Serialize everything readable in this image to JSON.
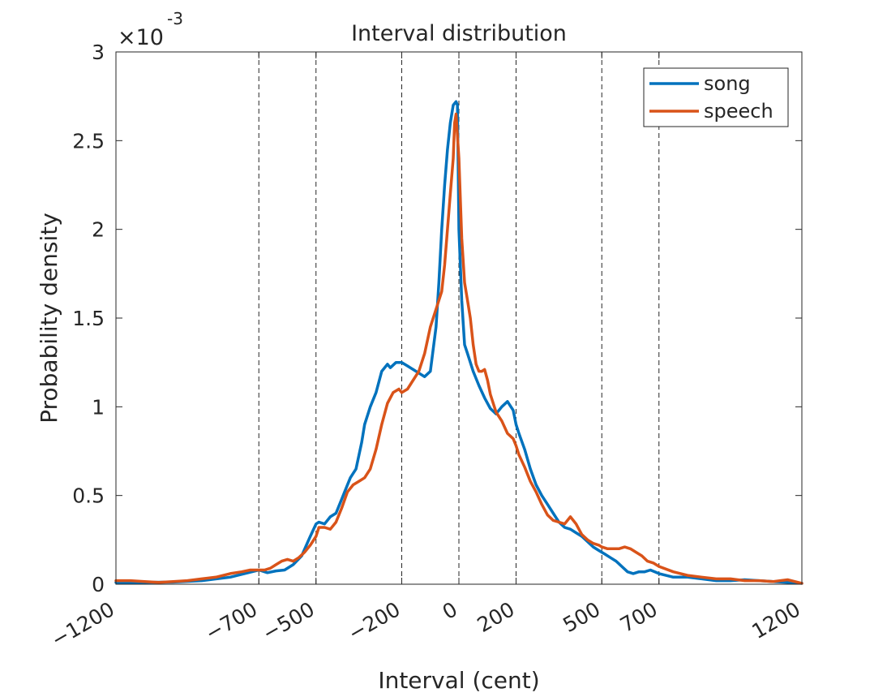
{
  "chart_data": {
    "type": "line",
    "title": "Interval distribution",
    "xlabel": "Interval (cent)",
    "ylabel": "Probability density",
    "xlim": [
      -1200,
      1200
    ],
    "ylim": [
      0,
      3
    ],
    "y_exponent_label": "×10",
    "y_exponent_power": "-3",
    "xticks": [
      -1200,
      -700,
      -500,
      -200,
      0,
      200,
      500,
      700,
      1200
    ],
    "xtick_labels": [
      "−1200",
      "−700",
      "−500",
      "−200",
      "0",
      "200",
      "500",
      "700",
      "1200"
    ],
    "yticks": [
      0,
      0.5,
      1,
      1.5,
      2,
      2.5,
      3
    ],
    "ytick_labels": [
      "0",
      "0.5",
      "1",
      "1.5",
      "2",
      "2.5",
      "3"
    ],
    "vlines": [
      -700,
      -500,
      -200,
      0,
      200,
      500,
      700
    ],
    "grid": false,
    "legend_position": "top-right",
    "series": [
      {
        "name": "song",
        "color": "#0072BD",
        "x": [
          -1200,
          -1100,
          -1000,
          -900,
          -800,
          -750,
          -700,
          -670,
          -640,
          -610,
          -580,
          -550,
          -520,
          -500,
          -490,
          -470,
          -450,
          -430,
          -410,
          -400,
          -380,
          -360,
          -340,
          -330,
          -310,
          -290,
          -270,
          -250,
          -240,
          -220,
          -200,
          -180,
          -160,
          -140,
          -120,
          -100,
          -80,
          -70,
          -60,
          -50,
          -40,
          -30,
          -20,
          -10,
          -5,
          0,
          10,
          20,
          30,
          50,
          70,
          90,
          110,
          130,
          150,
          170,
          190,
          200,
          210,
          230,
          250,
          270,
          290,
          310,
          330,
          350,
          370,
          390,
          410,
          430,
          450,
          470,
          490,
          510,
          530,
          550,
          570,
          590,
          610,
          630,
          650,
          670,
          700,
          750,
          800,
          850,
          900,
          950,
          1000,
          1050,
          1100,
          1150,
          1200
        ],
        "y": [
          0.01,
          0.01,
          0.012,
          0.02,
          0.04,
          0.06,
          0.08,
          0.065,
          0.075,
          0.08,
          0.11,
          0.16,
          0.27,
          0.34,
          0.35,
          0.34,
          0.38,
          0.4,
          0.48,
          0.52,
          0.6,
          0.65,
          0.8,
          0.9,
          1.0,
          1.08,
          1.2,
          1.24,
          1.22,
          1.25,
          1.25,
          1.23,
          1.21,
          1.19,
          1.17,
          1.2,
          1.45,
          1.7,
          2.0,
          2.25,
          2.45,
          2.6,
          2.7,
          2.72,
          2.7,
          2.0,
          1.6,
          1.35,
          1.3,
          1.2,
          1.12,
          1.05,
          0.99,
          0.96,
          1.0,
          1.03,
          0.98,
          0.9,
          0.85,
          0.76,
          0.65,
          0.56,
          0.5,
          0.45,
          0.4,
          0.35,
          0.32,
          0.31,
          0.29,
          0.27,
          0.24,
          0.21,
          0.19,
          0.17,
          0.15,
          0.13,
          0.1,
          0.07,
          0.06,
          0.07,
          0.07,
          0.08,
          0.06,
          0.04,
          0.04,
          0.03,
          0.02,
          0.02,
          0.025,
          0.02,
          0.015,
          0.01,
          0.005
        ]
      },
      {
        "name": "speech",
        "color": "#D95319",
        "x": [
          -1200,
          -1150,
          -1100,
          -1050,
          -1000,
          -950,
          -900,
          -850,
          -800,
          -760,
          -730,
          -700,
          -680,
          -660,
          -640,
          -620,
          -600,
          -580,
          -560,
          -540,
          -520,
          -500,
          -490,
          -470,
          -450,
          -430,
          -410,
          -390,
          -370,
          -350,
          -330,
          -310,
          -290,
          -270,
          -250,
          -230,
          -210,
          -200,
          -180,
          -160,
          -140,
          -120,
          -100,
          -80,
          -60,
          -50,
          -40,
          -30,
          -20,
          -15,
          -10,
          0,
          10,
          20,
          30,
          40,
          50,
          60,
          70,
          80,
          90,
          100,
          110,
          130,
          150,
          170,
          190,
          200,
          210,
          230,
          250,
          270,
          290,
          310,
          330,
          350,
          370,
          390,
          410,
          430,
          450,
          470,
          490,
          500,
          520,
          540,
          560,
          580,
          600,
          620,
          640,
          660,
          680,
          700,
          750,
          800,
          850,
          900,
          950,
          1000,
          1050,
          1100,
          1150,
          1200
        ],
        "y": [
          0.02,
          0.02,
          0.015,
          0.01,
          0.015,
          0.02,
          0.03,
          0.04,
          0.06,
          0.07,
          0.08,
          0.08,
          0.08,
          0.09,
          0.11,
          0.13,
          0.14,
          0.13,
          0.15,
          0.18,
          0.22,
          0.27,
          0.32,
          0.32,
          0.31,
          0.35,
          0.43,
          0.52,
          0.56,
          0.58,
          0.6,
          0.65,
          0.76,
          0.9,
          1.02,
          1.08,
          1.1,
          1.08,
          1.1,
          1.15,
          1.2,
          1.3,
          1.45,
          1.55,
          1.65,
          1.8,
          2.0,
          2.2,
          2.4,
          2.6,
          2.65,
          2.4,
          1.95,
          1.7,
          1.6,
          1.5,
          1.35,
          1.24,
          1.2,
          1.2,
          1.21,
          1.15,
          1.07,
          0.97,
          0.92,
          0.85,
          0.82,
          0.78,
          0.73,
          0.66,
          0.58,
          0.52,
          0.45,
          0.39,
          0.36,
          0.35,
          0.34,
          0.38,
          0.34,
          0.28,
          0.25,
          0.23,
          0.22,
          0.21,
          0.2,
          0.2,
          0.2,
          0.21,
          0.2,
          0.18,
          0.16,
          0.13,
          0.12,
          0.1,
          0.07,
          0.05,
          0.04,
          0.03,
          0.03,
          0.02,
          0.02,
          0.015,
          0.025,
          0.005
        ]
      }
    ]
  }
}
